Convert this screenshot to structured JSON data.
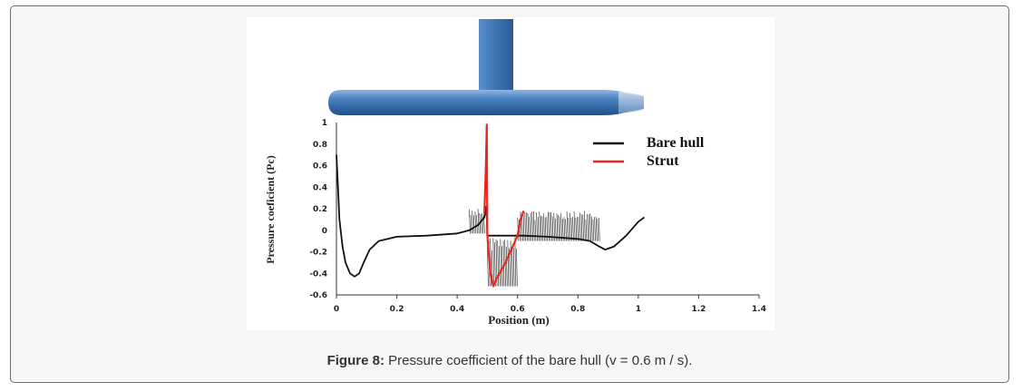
{
  "caption": {
    "label": "Figure 8:",
    "text": "Pressure coefficient of the bare hull (v = 0.6 m / s)."
  },
  "colors": {
    "hull": "#3f76b4",
    "bare_hull": "#111111",
    "strut": "#e8281e",
    "frame_border": "#6f6f6f",
    "frame_bg": "#f6f6f6"
  },
  "chart_data": {
    "type": "line",
    "title": "",
    "xlabel": "Position (m)",
    "ylabel": "Pressure coeficient (Pc)",
    "xlim": [
      0,
      1.4
    ],
    "ylim": [
      -0.6,
      1
    ],
    "x_ticks": [
      {
        "v": 0,
        "label": "0"
      },
      {
        "v": 0.2,
        "label": "0.2"
      },
      {
        "v": 0.4,
        "label": "0.4"
      },
      {
        "v": 0.6,
        "label": "0.6"
      },
      {
        "v": 0.8,
        "label": "0.8"
      },
      {
        "v": 1.0,
        "label": "1"
      },
      {
        "v": 1.2,
        "label": "1.2"
      },
      {
        "v": 1.4,
        "label": "1.4"
      }
    ],
    "y_ticks": [
      {
        "v": 1,
        "label": "1"
      },
      {
        "v": 0.8,
        "label": "0.8"
      },
      {
        "v": 0.6,
        "label": "0.6"
      },
      {
        "v": 0.4,
        "label": "0.4"
      },
      {
        "v": 0.2,
        "label": "0.2"
      },
      {
        "v": 0,
        "label": "0"
      },
      {
        "v": -0.2,
        "label": "-0.2"
      },
      {
        "v": -0.4,
        "label": "-0.4"
      },
      {
        "v": -0.6,
        "label": "-0.6"
      }
    ],
    "legend": [
      {
        "name": "Bare hull",
        "color": "#111111"
      },
      {
        "name": "Strut",
        "color": "#e8281e"
      }
    ],
    "legend_position": "top-right",
    "grid": false,
    "series": [
      {
        "name": "Bare hull",
        "x": [
          0.0,
          0.005,
          0.01,
          0.02,
          0.03,
          0.045,
          0.06,
          0.075,
          0.09,
          0.11,
          0.14,
          0.2,
          0.3,
          0.4,
          0.44,
          0.47,
          0.49,
          0.497,
          0.5,
          0.53,
          0.6,
          0.62,
          0.7,
          0.8,
          0.84,
          0.87,
          0.89,
          0.92,
          0.96,
          1.0,
          1.02
        ],
        "y": [
          0.7,
          0.4,
          0.1,
          -0.15,
          -0.3,
          -0.4,
          -0.43,
          -0.4,
          -0.3,
          -0.18,
          -0.1,
          -0.06,
          -0.05,
          -0.03,
          0.0,
          0.05,
          0.12,
          0.22,
          -0.05,
          -0.05,
          -0.05,
          -0.05,
          -0.06,
          -0.08,
          -0.1,
          -0.15,
          -0.18,
          -0.15,
          -0.05,
          0.08,
          0.12
        ]
      },
      {
        "name": "Strut",
        "x": [
          0.49,
          0.495,
          0.498,
          0.5,
          0.51,
          0.52,
          0.53,
          0.56,
          0.6,
          0.61,
          0.62
        ],
        "y": [
          0.15,
          0.6,
          0.98,
          -0.05,
          -0.4,
          -0.52,
          -0.45,
          -0.3,
          -0.05,
          0.1,
          0.18
        ]
      }
    ],
    "wake_fill_regions": [
      {
        "x": [
          0.44,
          0.49
        ],
        "y_low": -0.03,
        "y_high": 0.2
      },
      {
        "x": [
          0.5,
          0.6
        ],
        "y_low": -0.52,
        "y_high": -0.05
      },
      {
        "x": [
          0.6,
          0.87
        ],
        "y_low": -0.1,
        "y_high": 0.18
      }
    ]
  }
}
